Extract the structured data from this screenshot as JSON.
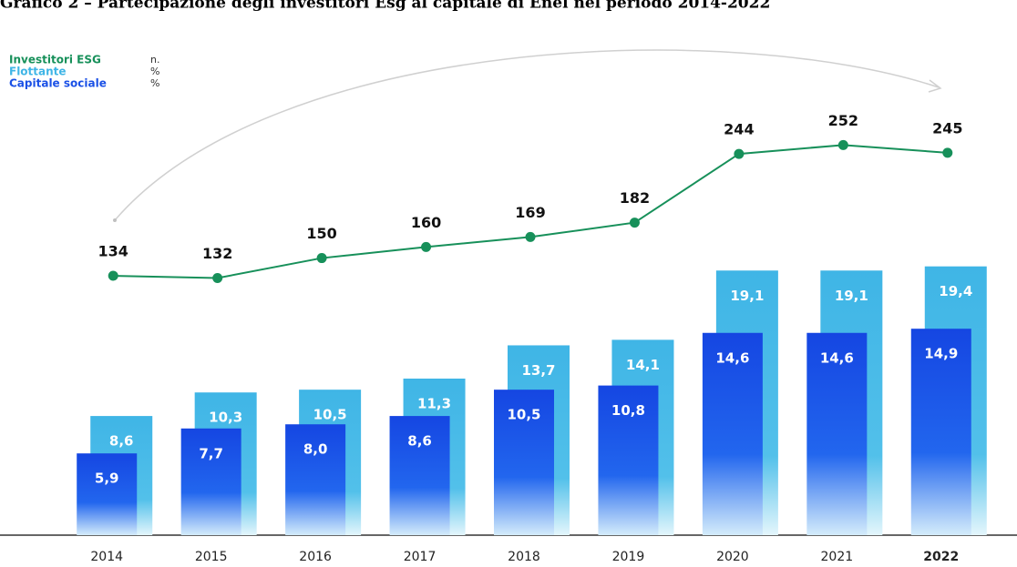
{
  "chart_data": {
    "type": "bar-line",
    "title": "Grafico 2 – Partecipazione degli investitori Esg al capitale di Enel nel periodo 2014-2022",
    "categories": [
      "2014",
      "2015",
      "2016",
      "2017",
      "2018",
      "2019",
      "2020",
      "2021",
      "2022"
    ],
    "highlight_index": 8,
    "ylim": [
      0,
      36
    ],
    "y2lim": [
      -100,
      350
    ],
    "series": [
      {
        "name": "Investitori ESG",
        "unit": "n.",
        "type": "line",
        "axis": "y2",
        "color": "#17905a",
        "values": [
          134,
          132,
          150,
          160,
          169,
          182,
          244,
          252,
          245
        ]
      },
      {
        "name": "Flottante",
        "unit": "%",
        "type": "bar",
        "color": "#3fb5e6",
        "values": [
          8.6,
          10.3,
          10.5,
          11.3,
          13.7,
          14.1,
          19.1,
          19.1,
          19.4
        ],
        "value_labels": [
          "8,6",
          "10,3",
          "10,5",
          "11,3",
          "13,7",
          "14,1",
          "19,1",
          "19,1",
          "19,4"
        ]
      },
      {
        "name": "Capitale sociale",
        "unit": "%",
        "type": "bar",
        "color": "#1a50e6",
        "values": [
          5.9,
          7.7,
          8.0,
          8.6,
          10.5,
          10.8,
          14.6,
          14.6,
          14.9
        ],
        "value_labels": [
          "5,9",
          "7,7",
          "8,0",
          "8,6",
          "10,5",
          "10,8",
          "14,6",
          "14,6",
          "14,9"
        ]
      }
    ]
  }
}
